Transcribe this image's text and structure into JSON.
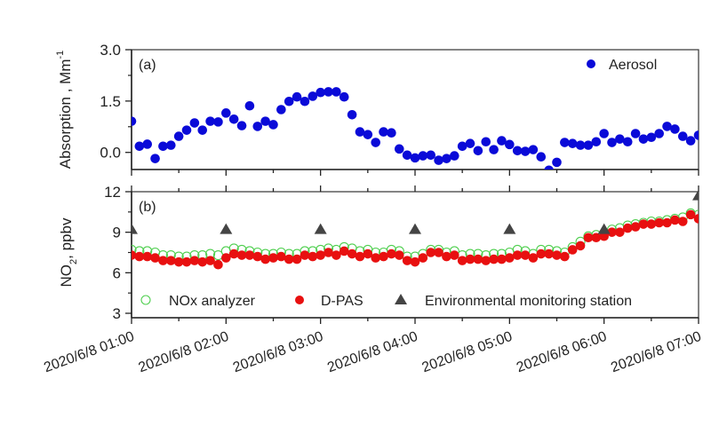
{
  "chart_data": [
    {
      "panel_label": "(a)",
      "type": "scatter",
      "ylabel": "Absorption , Mm",
      "ylabel_superscript": "-1",
      "ylim": [
        -0.5,
        3.0
      ],
      "yticks": [
        "3.0",
        "1.5",
        "0.0"
      ],
      "ytick_values": [
        3.0,
        1.5,
        0.0
      ],
      "xlim": [
        "2020/6/8 01:00",
        "2020/6/8 07:00"
      ],
      "grid": false,
      "legend_placement": "top-right",
      "series": [
        {
          "name": "Aerosol",
          "color": "#0a0ad8",
          "marker": "filled-circle",
          "start": "2020/6/8 01:00",
          "interval_minutes": 5,
          "values": [
            0.91,
            0.18,
            0.24,
            -0.18,
            0.18,
            0.21,
            0.47,
            0.65,
            0.86,
            0.65,
            0.91,
            0.89,
            1.15,
            0.97,
            0.78,
            1.36,
            0.76,
            0.91,
            0.81,
            1.25,
            1.49,
            1.62,
            1.49,
            1.64,
            1.75,
            1.77,
            1.77,
            1.62,
            1.1,
            0.6,
            0.52,
            0.29,
            0.6,
            0.57,
            0.1,
            -0.08,
            -0.16,
            -0.1,
            -0.08,
            -0.23,
            -0.18,
            -0.1,
            0.18,
            0.26,
            0.05,
            0.31,
            0.08,
            0.34,
            0.23,
            0.05,
            0.03,
            0.08,
            -0.13,
            -0.52,
            -0.29,
            0.29,
            0.26,
            0.21,
            0.21,
            0.31,
            0.55,
            0.29,
            0.39,
            0.31,
            0.55,
            0.39,
            0.44,
            0.55,
            0.76,
            0.68,
            0.47,
            0.34,
            0.5
          ]
        }
      ]
    },
    {
      "panel_label": "(b)",
      "type": "scatter",
      "ylabel": "NO",
      "ylabel_subscript": "2",
      "ylabel_suffix": ", ppbv",
      "ylim": [
        3,
        12
      ],
      "yticks": [
        "12",
        "9",
        "6",
        "3"
      ],
      "ytick_values": [
        12,
        9,
        6,
        3
      ],
      "xlim": [
        "2020/6/8 01:00",
        "2020/6/8 07:00"
      ],
      "xticks": [
        "2020/6/8 01:00",
        "2020/6/8 02:00",
        "2020/6/8 03:00",
        "2020/6/8 04:00",
        "2020/6/8 05:00",
        "2020/6/8 06:00",
        "2020/6/8 07:00"
      ],
      "grid": false,
      "legend_placement": "bottom",
      "series": [
        {
          "name": "NOx analyzer",
          "color": "#4fcf4f",
          "marker": "open-circle",
          "start": "2020/6/8 01:00",
          "interval_minutes": 5,
          "values": [
            7.7,
            7.6,
            7.6,
            7.5,
            7.3,
            7.3,
            7.2,
            7.2,
            7.3,
            7.3,
            7.4,
            7.3,
            7.6,
            7.8,
            7.7,
            7.6,
            7.5,
            7.4,
            7.4,
            7.5,
            7.4,
            7.4,
            7.6,
            7.6,
            7.7,
            7.8,
            7.7,
            7.9,
            7.8,
            7.6,
            7.7,
            7.5,
            7.5,
            7.7,
            7.6,
            7.2,
            7.2,
            7.4,
            7.7,
            7.7,
            7.5,
            7.6,
            7.3,
            7.4,
            7.4,
            7.3,
            7.4,
            7.4,
            7.5,
            7.7,
            7.6,
            7.4,
            7.7,
            7.7,
            7.6,
            7.5,
            7.9,
            8.3,
            8.7,
            8.8,
            8.9,
            9.2,
            9.3,
            9.5,
            9.6,
            9.7,
            9.8,
            9.8,
            9.9,
            10.0,
            10.1,
            10.4,
            10.3
          ]
        },
        {
          "name": "D-PAS",
          "color": "#e81010",
          "marker": "filled-circle",
          "start": "2020/6/8 01:00",
          "interval_minutes": 5,
          "values": [
            7.3,
            7.2,
            7.2,
            7.1,
            6.9,
            6.9,
            6.8,
            6.8,
            6.9,
            6.8,
            6.9,
            6.6,
            7.1,
            7.4,
            7.3,
            7.3,
            7.2,
            7.0,
            7.1,
            7.2,
            7.0,
            7.0,
            7.3,
            7.2,
            7.3,
            7.5,
            7.3,
            7.6,
            7.4,
            7.2,
            7.4,
            7.1,
            7.2,
            7.4,
            7.3,
            6.9,
            6.8,
            7.1,
            7.5,
            7.5,
            7.2,
            7.3,
            6.9,
            7.0,
            7.0,
            6.9,
            7.0,
            7.0,
            7.1,
            7.3,
            7.3,
            7.1,
            7.4,
            7.4,
            7.3,
            7.2,
            7.7,
            8.0,
            8.6,
            8.6,
            8.7,
            9.0,
            9.0,
            9.3,
            9.4,
            9.6,
            9.6,
            9.7,
            9.7,
            9.9,
            9.8,
            10.3,
            10.0
          ]
        },
        {
          "name": "Environmental monitoring station",
          "color": "#444444",
          "marker": "filled-triangle",
          "start": "2020/6/8 01:00",
          "interval_minutes": 60,
          "values": [
            9.2,
            9.2,
            9.2,
            9.2,
            9.2,
            9.2,
            11.7
          ]
        }
      ]
    }
  ]
}
